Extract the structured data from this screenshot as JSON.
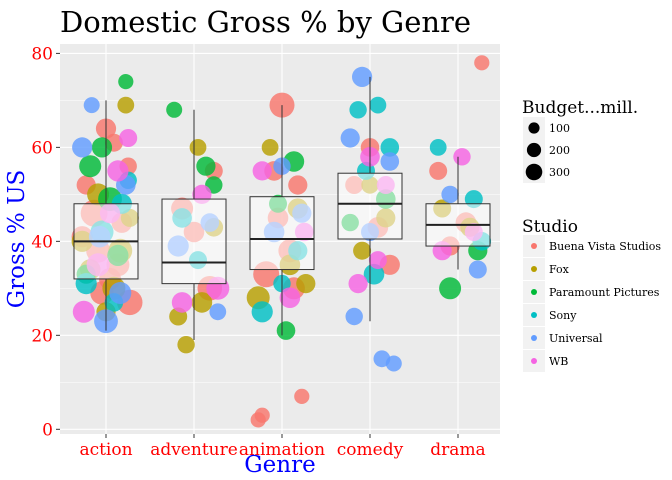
{
  "chart_data": {
    "type": "scatter",
    "title": "Domestic Gross % by Genre",
    "xlabel": "Genre",
    "ylabel": "Gross % US",
    "categories": [
      "action",
      "adventure",
      "animation",
      "comedy",
      "drama"
    ],
    "yticks": [
      0,
      20,
      40,
      60,
      80
    ],
    "ylim": [
      -1,
      82
    ],
    "grid": true,
    "boxplots": [
      {
        "category": "action",
        "q1": 32,
        "median": 40,
        "q3": 48,
        "whisker_low": 21,
        "whisker_high": 70
      },
      {
        "category": "adventure",
        "q1": 31,
        "median": 35.5,
        "q3": 49,
        "whisker_low": 19,
        "whisker_high": 68
      },
      {
        "category": "animation",
        "q1": 34,
        "median": 40.5,
        "q3": 49.5,
        "whisker_low": 20,
        "whisker_high": 69
      },
      {
        "category": "comedy",
        "q1": 40.5,
        "median": 48,
        "q3": 54.5,
        "whisker_low": 23,
        "whisker_high": 75
      },
      {
        "category": "drama",
        "q1": 39,
        "median": 43.5,
        "q3": 48,
        "whisker_low": 34,
        "whisker_high": 58
      }
    ],
    "series": [
      {
        "name": "Buena Vista Studios",
        "color": "#F8766D",
        "points": [
          [
            "action",
            0.05,
            32,
            180
          ],
          [
            "action",
            -0.1,
            38,
            220
          ],
          [
            "action",
            0.2,
            44,
            150
          ],
          [
            "action",
            -0.25,
            52,
            120
          ],
          [
            "action",
            0.3,
            27,
            260
          ],
          [
            "action",
            0.1,
            61,
            100
          ],
          [
            "action",
            -0.15,
            46,
            300
          ],
          [
            "action",
            0.15,
            35,
            200
          ],
          [
            "action",
            0.28,
            56,
            90
          ],
          [
            "action",
            -0.3,
            41,
            160
          ],
          [
            "action",
            0.0,
            64,
            140
          ],
          [
            "action",
            -0.05,
            29,
            210
          ],
          [
            "adventure",
            -0.15,
            47,
            180
          ],
          [
            "adventure",
            0.2,
            30,
            240
          ],
          [
            "adventure",
            0.0,
            42,
            150
          ],
          [
            "adventure",
            0.25,
            55,
            100
          ],
          [
            "animation",
            -0.2,
            33,
            280
          ],
          [
            "animation",
            0.1,
            38,
            200
          ],
          [
            "animation",
            -0.05,
            45,
            150
          ],
          [
            "animation",
            0.2,
            52,
            120
          ],
          [
            "animation",
            0.0,
            69,
            250
          ],
          [
            "animation",
            -0.3,
            2,
            60
          ],
          [
            "animation",
            0.25,
            7,
            60
          ],
          [
            "animation",
            -0.25,
            3,
            60
          ],
          [
            "animation",
            0.15,
            30,
            180
          ],
          [
            "animation",
            -0.1,
            55,
            130
          ],
          [
            "comedy",
            0.1,
            43,
            150
          ],
          [
            "comedy",
            -0.2,
            52,
            100
          ],
          [
            "comedy",
            0.25,
            35,
            140
          ],
          [
            "comedy",
            0.0,
            60,
            110
          ],
          [
            "drama",
            -0.25,
            55,
            100
          ],
          [
            "drama",
            0.1,
            44,
            150
          ],
          [
            "drama",
            0.3,
            78,
            60
          ],
          [
            "drama",
            -0.1,
            39,
            120
          ]
        ]
      },
      {
        "name": "Fox",
        "color": "#B79F00",
        "points": [
          [
            "action",
            0.1,
            30,
            200
          ],
          [
            "action",
            -0.2,
            34,
            150
          ],
          [
            "action",
            0.3,
            45,
            100
          ],
          [
            "action",
            -0.1,
            50,
            180
          ],
          [
            "action",
            0.25,
            69,
            80
          ],
          [
            "action",
            0.0,
            25,
            120
          ],
          [
            "action",
            -0.3,
            40,
            160
          ],
          [
            "action",
            0.18,
            38,
            220
          ],
          [
            "adventure",
            -0.2,
            24,
            100
          ],
          [
            "adventure",
            0.1,
            27,
            150
          ],
          [
            "adventure",
            -0.1,
            18,
            90
          ],
          [
            "adventure",
            0.25,
            43,
            110
          ],
          [
            "adventure",
            0.05,
            60,
            80
          ],
          [
            "animation",
            -0.3,
            28,
            200
          ],
          [
            "animation",
            0.1,
            35,
            150
          ],
          [
            "animation",
            0.3,
            31,
            120
          ],
          [
            "animation",
            -0.15,
            60,
            80
          ],
          [
            "animation",
            0.2,
            47,
            140
          ],
          [
            "comedy",
            -0.1,
            38,
            100
          ],
          [
            "comedy",
            0.2,
            45,
            120
          ],
          [
            "comedy",
            0.0,
            52,
            90
          ],
          [
            "drama",
            -0.2,
            47,
            100
          ],
          [
            "drama",
            0.15,
            43,
            120
          ]
        ]
      },
      {
        "name": "Paramount Pictures",
        "color": "#00BA38",
        "points": [
          [
            "action",
            -0.2,
            56,
            180
          ],
          [
            "action",
            0.05,
            49,
            220
          ],
          [
            "action",
            0.25,
            74,
            60
          ],
          [
            "action",
            -0.05,
            60,
            140
          ],
          [
            "action",
            0.15,
            37,
            160
          ],
          [
            "action",
            -0.25,
            33,
            120
          ],
          [
            "adventure",
            -0.25,
            68,
            70
          ],
          [
            "adventure",
            0.15,
            56,
            120
          ],
          [
            "adventure",
            0.25,
            52,
            90
          ],
          [
            "animation",
            0.15,
            57,
            150
          ],
          [
            "animation",
            0.05,
            21,
            110
          ],
          [
            "animation",
            -0.05,
            48,
            100
          ],
          [
            "comedy",
            0.2,
            49,
            130
          ],
          [
            "comedy",
            -0.25,
            44,
            90
          ],
          [
            "drama",
            -0.1,
            30,
            180
          ],
          [
            "drama",
            0.25,
            38,
            120
          ]
        ]
      },
      {
        "name": "Sony",
        "color": "#00BFC4",
        "points": [
          [
            "action",
            -0.05,
            42,
            200
          ],
          [
            "action",
            0.2,
            48,
            140
          ],
          [
            "action",
            -0.25,
            31,
            160
          ],
          [
            "action",
            0.1,
            27,
            110
          ],
          [
            "action",
            0.28,
            53,
            90
          ],
          [
            "adventure",
            0.05,
            36,
            100
          ],
          [
            "adventure",
            -0.15,
            45,
            130
          ],
          [
            "animation",
            -0.25,
            25,
            160
          ],
          [
            "animation",
            0.2,
            38,
            120
          ],
          [
            "animation",
            0.0,
            31,
            90
          ],
          [
            "comedy",
            -0.15,
            68,
            90
          ],
          [
            "comedy",
            0.1,
            69,
            80
          ],
          [
            "comedy",
            0.25,
            60,
            110
          ],
          [
            "comedy",
            0.05,
            33,
            150
          ],
          [
            "comedy",
            -0.05,
            55,
            100
          ],
          [
            "drama",
            0.2,
            49,
            100
          ],
          [
            "drama",
            -0.25,
            60,
            80
          ],
          [
            "drama",
            0.3,
            40,
            110
          ]
        ]
      },
      {
        "name": "Universal",
        "color": "#619CFF",
        "points": [
          [
            "action",
            -0.3,
            60,
            140
          ],
          [
            "action",
            0.0,
            23,
            220
          ],
          [
            "action",
            0.18,
            29,
            180
          ],
          [
            "action",
            -0.18,
            69,
            70
          ],
          [
            "action",
            0.25,
            52,
            130
          ],
          [
            "action",
            -0.08,
            41,
            170
          ],
          [
            "adventure",
            -0.2,
            39,
            160
          ],
          [
            "adventure",
            0.2,
            44,
            110
          ],
          [
            "adventure",
            0.3,
            25,
            80
          ],
          [
            "animation",
            -0.1,
            42,
            150
          ],
          [
            "animation",
            0.25,
            46,
            120
          ],
          [
            "animation",
            0.0,
            56,
            90
          ],
          [
            "comedy",
            -0.1,
            75,
            140
          ],
          [
            "comedy",
            0.0,
            42,
            100
          ],
          [
            "comedy",
            0.25,
            57,
            110
          ],
          [
            "comedy",
            -0.2,
            24,
            90
          ],
          [
            "comedy",
            0.15,
            15,
            80
          ],
          [
            "comedy",
            0.3,
            14,
            70
          ],
          [
            "comedy",
            -0.25,
            62,
            120
          ],
          [
            "drama",
            0.25,
            34,
            100
          ],
          [
            "drama",
            -0.1,
            50,
            90
          ]
        ]
      },
      {
        "name": "WB",
        "color": "#F564E3",
        "points": [
          [
            "action",
            0.15,
            55,
            160
          ],
          [
            "action",
            -0.1,
            35,
            200
          ],
          [
            "action",
            0.28,
            62,
            100
          ],
          [
            "action",
            -0.28,
            25,
            180
          ],
          [
            "action",
            0.05,
            46,
            140
          ],
          [
            "adventure",
            -0.15,
            27,
            150
          ],
          [
            "adventure",
            0.3,
            30,
            200
          ],
          [
            "adventure",
            0.1,
            50,
            120
          ],
          [
            "animation",
            -0.25,
            55,
            120
          ],
          [
            "animation",
            0.1,
            28,
            150
          ],
          [
            "animation",
            0.28,
            42,
            110
          ],
          [
            "comedy",
            0.2,
            52,
            100
          ],
          [
            "comedy",
            -0.15,
            31,
            120
          ],
          [
            "comedy",
            0.1,
            36,
            100
          ],
          [
            "comedy",
            0.0,
            58,
            130
          ],
          [
            "drama",
            0.05,
            58,
            90
          ],
          [
            "drama",
            -0.2,
            38,
            120
          ],
          [
            "drama",
            0.2,
            42,
            100
          ]
        ]
      }
    ],
    "legend_size": {
      "title": "Budget...mill.",
      "entries": [
        {
          "label": "100",
          "value": 100
        },
        {
          "label": "200",
          "value": 200
        },
        {
          "label": "300",
          "value": 300
        }
      ]
    },
    "legend_color": {
      "title": "Studio",
      "entries": [
        "Buena Vista Studios",
        "Fox",
        "Paramount Pictures",
        "Sony",
        "Universal",
        "WB"
      ]
    }
  },
  "colors": {
    "panel": "#EBEBEB",
    "grid": "#FFFFFF",
    "tick_label": "#FF0000",
    "axis_title": "#0000FF"
  }
}
